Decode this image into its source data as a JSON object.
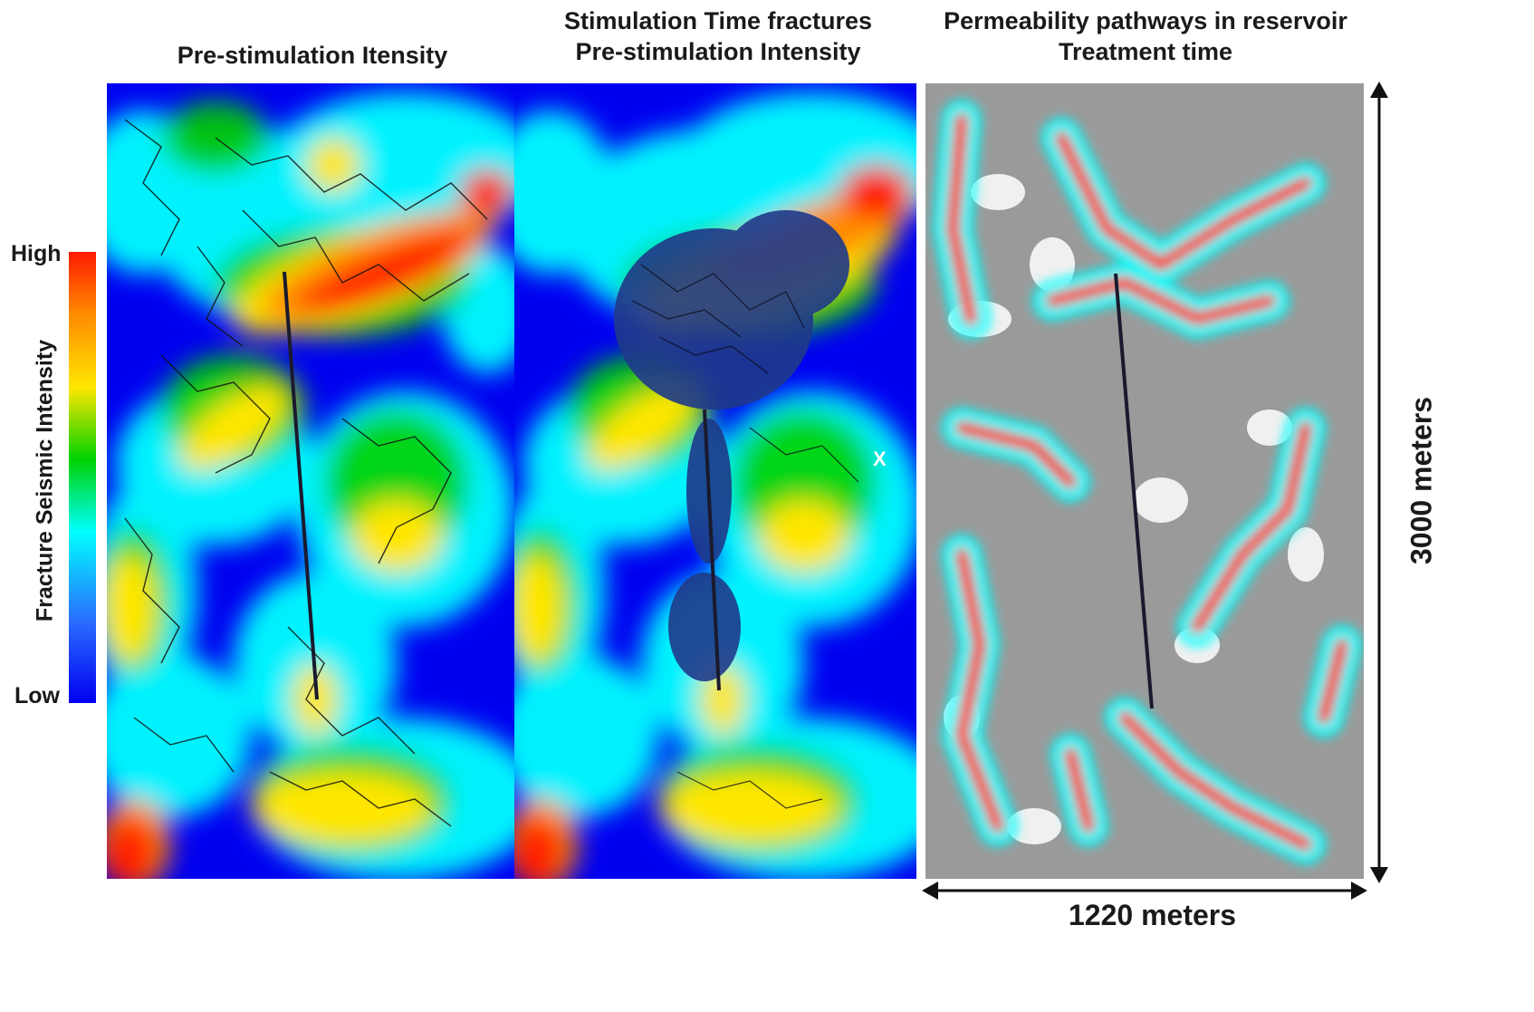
{
  "panels": [
    {
      "id": "pre-stimulation",
      "title_lines": [
        "Pre-stimulation Itensity"
      ]
    },
    {
      "id": "stimulation-time",
      "title_lines": [
        "Stimulation Time fractures",
        "Pre-stimulation Intensity"
      ],
      "marker": "X"
    },
    {
      "id": "permeability",
      "title_lines": [
        "Permeability pathways in reservoir",
        "Treatment time"
      ]
    }
  ],
  "colorbar": {
    "title": "Fracture Seismic Intensity",
    "high_label": "High",
    "low_label": "Low",
    "colors": [
      "#ff1a00",
      "#ff8c00",
      "#ffe600",
      "#00d200",
      "#00ffff",
      "#2a6cff",
      "#0000f0"
    ]
  },
  "dimensions": {
    "height": "3000 meters",
    "width": "1220 meters"
  },
  "colors": {
    "intensity_low": "#0000f0",
    "intensity_mid": "#00ffff",
    "intensity_high": "#ff0000",
    "permeability_background": "#9a9a9a",
    "fracture_lines": "#111111"
  }
}
